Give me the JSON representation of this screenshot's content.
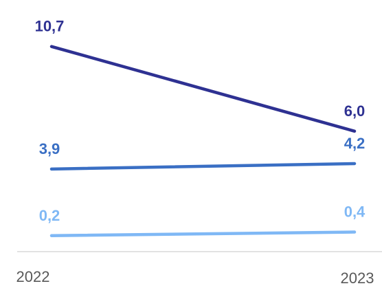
{
  "chart_data": {
    "type": "line",
    "x": [
      "2022",
      "2023"
    ],
    "series": [
      {
        "values": [
          10.7,
          6.0
        ],
        "labels": [
          "10,7",
          "6,0"
        ],
        "color": "#2e3192"
      },
      {
        "values": [
          3.9,
          4.2
        ],
        "labels": [
          "3,9",
          "4,2"
        ],
        "color": "#3a6fc4"
      },
      {
        "values": [
          0.2,
          0.4
        ],
        "labels": [
          "0,2",
          "0,4"
        ],
        "color": "#7fb8f5"
      }
    ],
    "title": "",
    "xlabel": "",
    "ylabel": "",
    "grid": false,
    "legend": "none"
  }
}
